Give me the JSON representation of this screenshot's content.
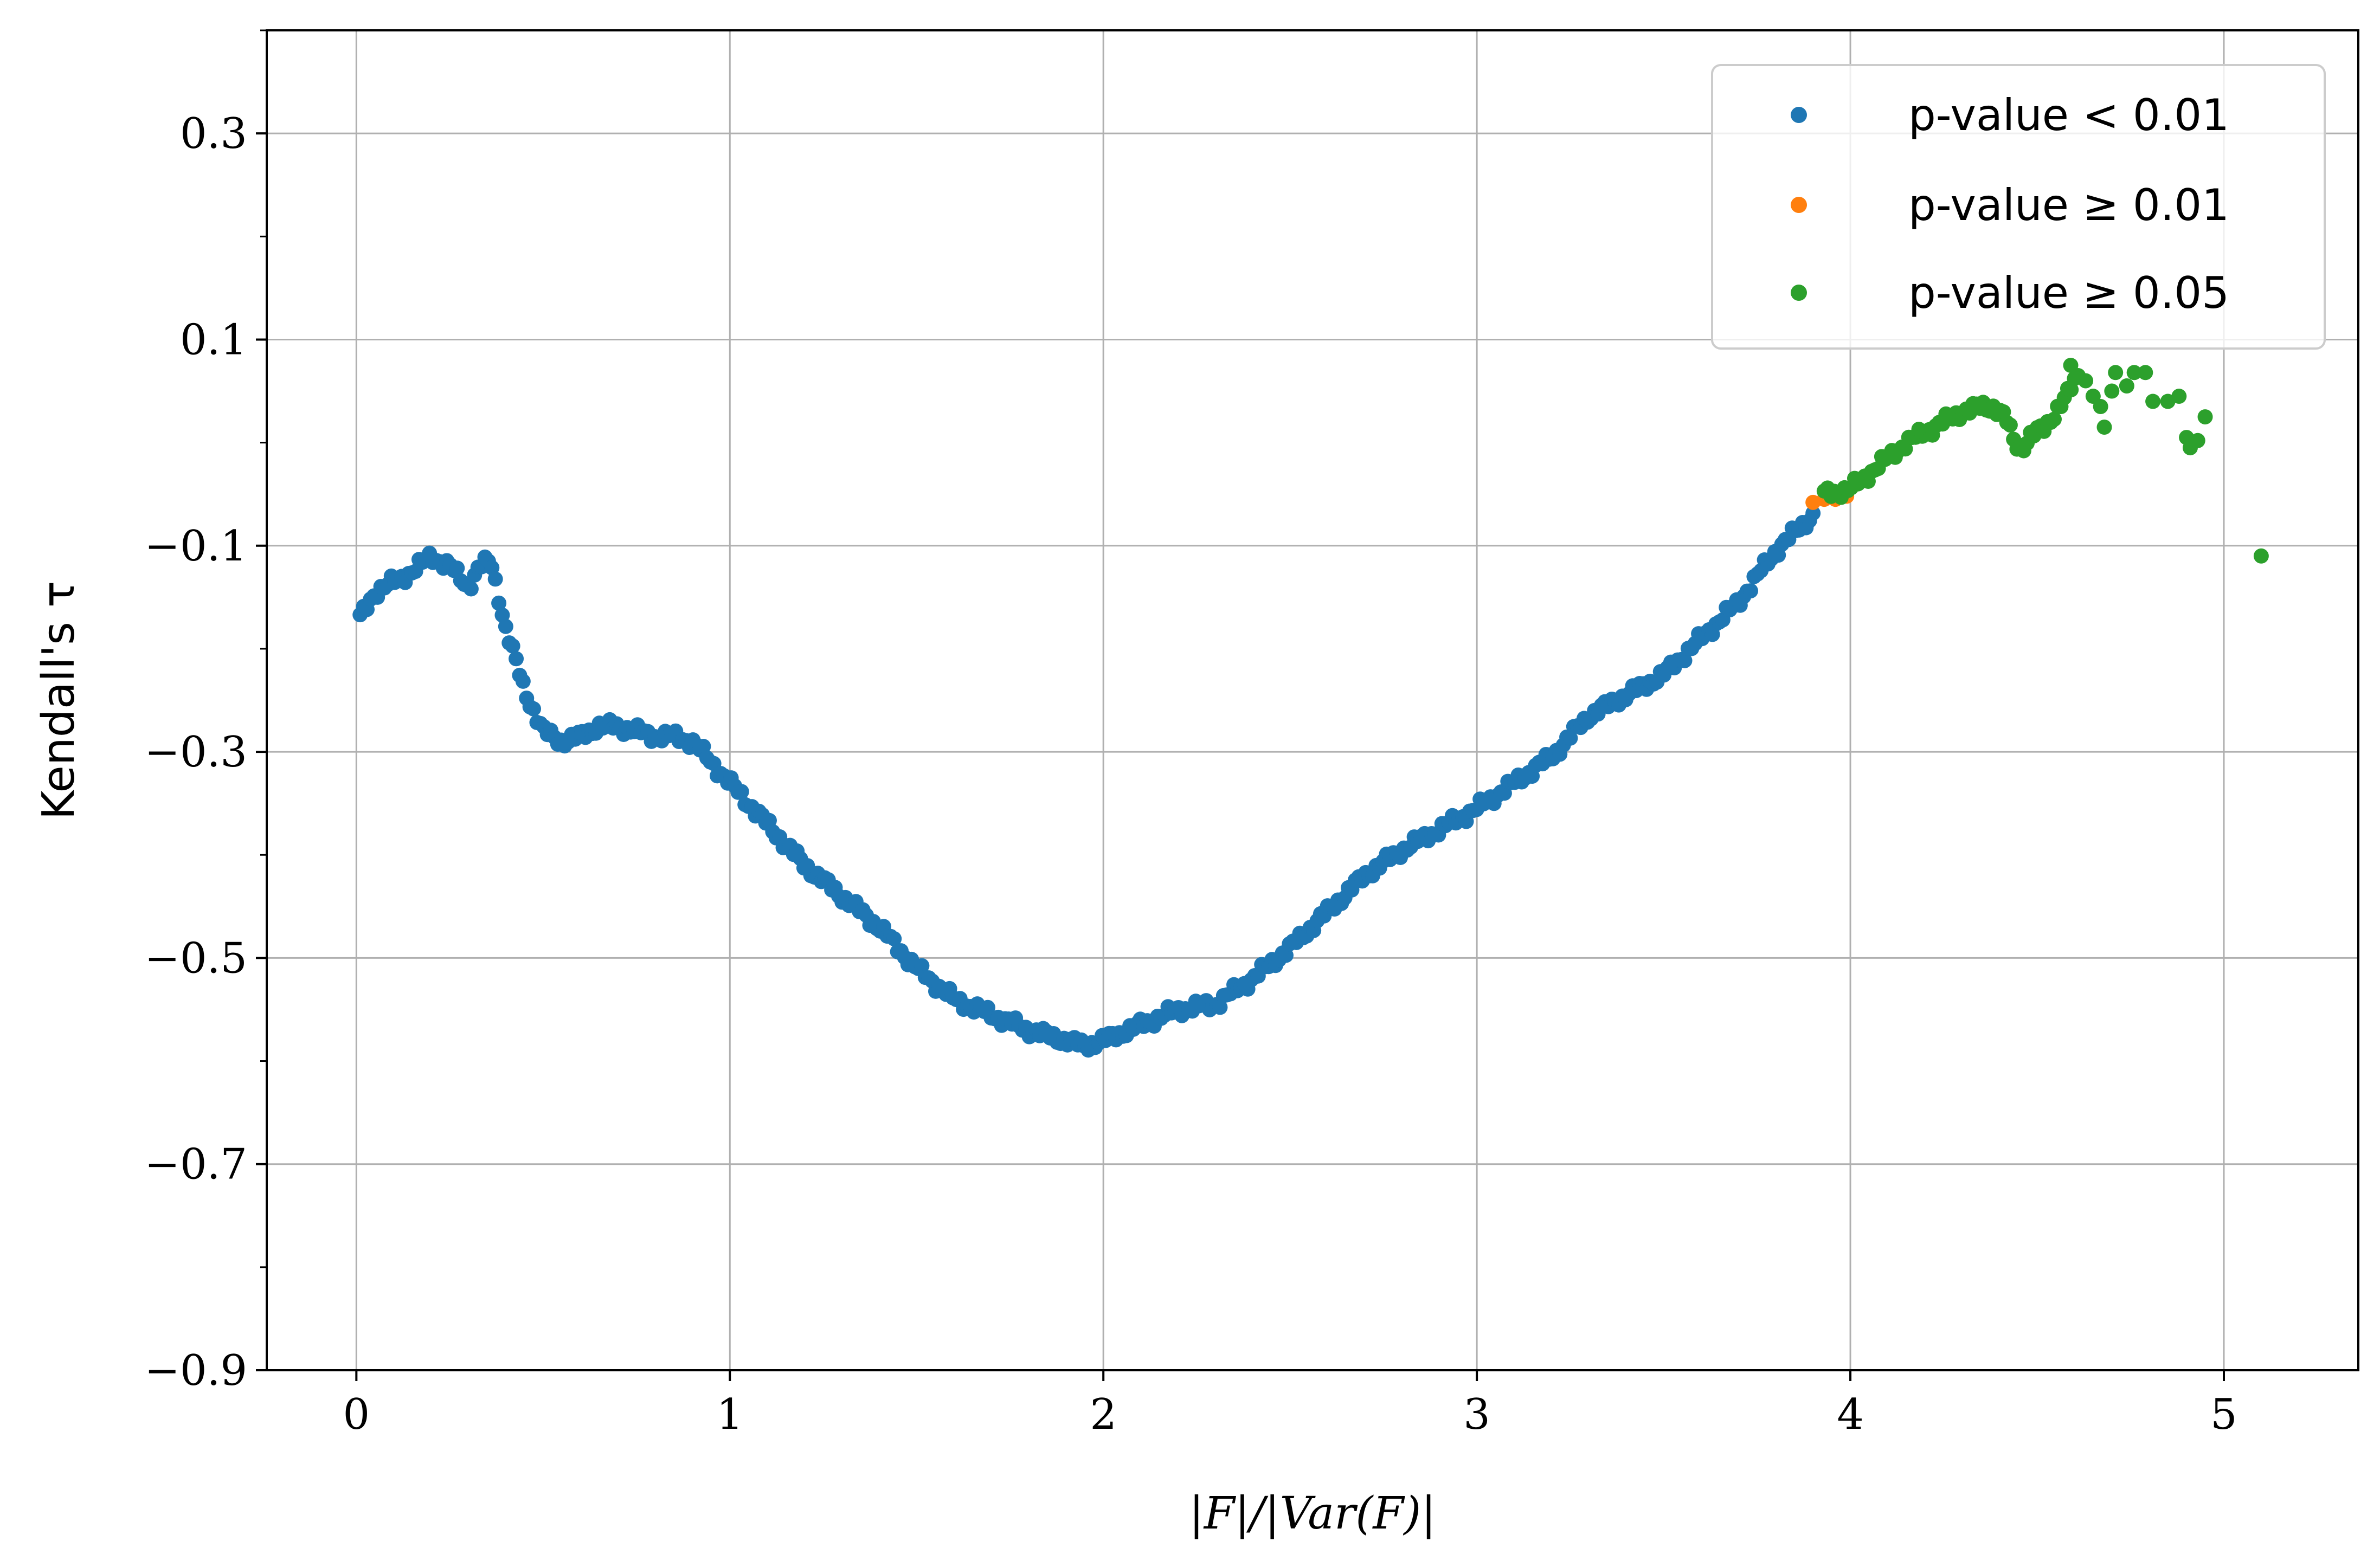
{
  "chart_data": {
    "type": "scatter",
    "xlabel": "|F|/|Var(F)|",
    "ylabel": "Kendall's τ",
    "xlim": [
      -0.24,
      5.36
    ],
    "ylim": [
      -0.9,
      0.4
    ],
    "xticks": [
      0,
      1,
      2,
      3,
      4,
      5
    ],
    "xtick_labels": [
      "0",
      "1",
      "2",
      "3",
      "4",
      "5"
    ],
    "yticks": [
      0.3,
      0.1,
      -0.1,
      -0.3,
      -0.5,
      -0.7,
      -0.9
    ],
    "ytick_labels": [
      "0.3",
      "0.1",
      "−0.1",
      "−0.3",
      "−0.5",
      "−0.7",
      "−0.9"
    ],
    "grid": true,
    "legend_position": "top-right",
    "series": [
      {
        "name": "p-value < 0.01",
        "color": "#1f77b4",
        "curve": {
          "x": [
            0.01,
            0.05,
            0.1,
            0.15,
            0.2,
            0.25,
            0.3,
            0.33,
            0.36,
            0.4,
            0.45,
            0.5,
            0.55,
            0.6,
            0.65,
            0.7,
            0.75,
            0.8,
            0.85,
            0.9,
            1.0,
            1.1,
            1.2,
            1.3,
            1.4,
            1.5,
            1.6,
            1.7,
            1.8,
            1.9,
            1.95,
            2.0,
            2.1,
            2.2,
            2.3,
            2.4,
            2.5,
            2.6,
            2.7,
            2.8,
            2.9,
            3.0,
            3.1,
            3.2,
            3.3,
            3.4,
            3.5,
            3.6,
            3.7,
            3.8,
            3.9
          ],
          "y": [
            -0.17,
            -0.145,
            -0.135,
            -0.125,
            -0.11,
            -0.12,
            -0.14,
            -0.12,
            -0.115,
            -0.18,
            -0.24,
            -0.28,
            -0.29,
            -0.285,
            -0.275,
            -0.275,
            -0.28,
            -0.285,
            -0.285,
            -0.29,
            -0.33,
            -0.37,
            -0.41,
            -0.44,
            -0.47,
            -0.51,
            -0.54,
            -0.555,
            -0.57,
            -0.58,
            -0.585,
            -0.58,
            -0.565,
            -0.55,
            -0.545,
            -0.52,
            -0.49,
            -0.455,
            -0.42,
            -0.395,
            -0.375,
            -0.355,
            -0.33,
            -0.305,
            -0.265,
            -0.245,
            -0.225,
            -0.19,
            -0.155,
            -0.105,
            -0.07
          ],
          "point_count": 420
        }
      },
      {
        "name": "p-value ≥ 0.01",
        "color": "#ff7f0e",
        "points": [
          [
            3.9,
            -0.058
          ],
          [
            3.93,
            -0.055
          ],
          [
            3.96,
            -0.055
          ],
          [
            3.99,
            -0.052
          ]
        ]
      },
      {
        "name": "p-value ≥ 0.05",
        "color": "#2ca02c",
        "curve": {
          "x": [
            3.93,
            4.0,
            4.05,
            4.1,
            4.15,
            4.2,
            4.25,
            4.3,
            4.35,
            4.38,
            4.4,
            4.42,
            4.44,
            4.46,
            4.48,
            4.5,
            4.52,
            4.55,
            4.58,
            4.6
          ],
          "y": [
            -0.05,
            -0.045,
            -0.03,
            -0.015,
            0.0,
            0.01,
            0.02,
            0.03,
            0.035,
            0.035,
            0.03,
            0.02,
            0.0,
            -0.005,
            0.005,
            0.01,
            0.015,
            0.03,
            0.045,
            0.06
          ],
          "point_count": 75
        },
        "points": [
          [
            4.59,
            0.075
          ],
          [
            4.61,
            0.065
          ],
          [
            4.63,
            0.06
          ],
          [
            4.65,
            0.045
          ],
          [
            4.67,
            0.035
          ],
          [
            4.68,
            0.015
          ],
          [
            4.7,
            0.05
          ],
          [
            4.71,
            0.068
          ],
          [
            4.74,
            0.055
          ],
          [
            4.76,
            0.068
          ],
          [
            4.79,
            0.068
          ],
          [
            4.81,
            0.04
          ],
          [
            4.85,
            0.04
          ],
          [
            4.88,
            0.045
          ],
          [
            4.9,
            0.005
          ],
          [
            4.91,
            -0.005
          ],
          [
            4.93,
            0.002
          ],
          [
            4.95,
            0.025
          ],
          [
            5.1,
            -0.11
          ]
        ]
      }
    ]
  }
}
